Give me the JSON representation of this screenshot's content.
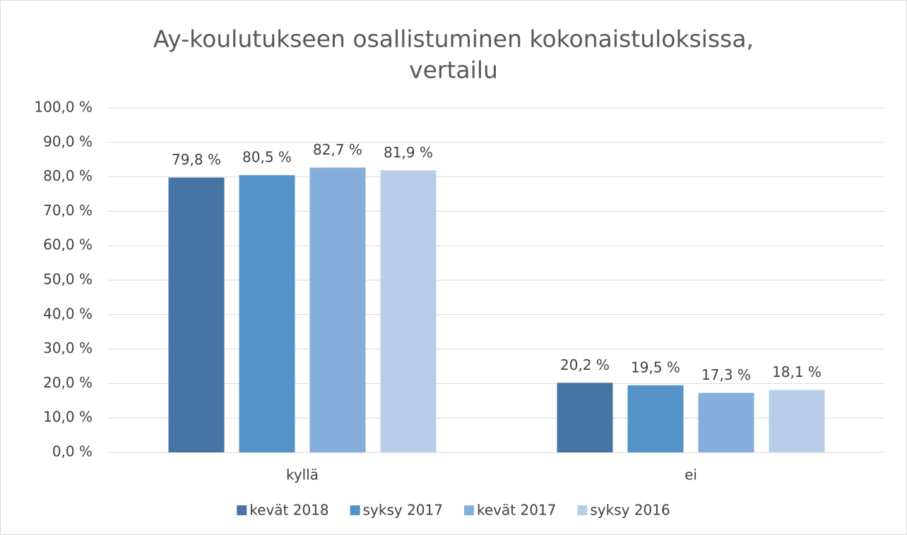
{
  "chart_data": {
    "type": "bar",
    "title": [
      "Ay-koulutukseen osallistuminen kokonaistuloksissa,",
      "vertailu"
    ],
    "categories": [
      "kyllä",
      "ei"
    ],
    "series": [
      {
        "name": "kevät 2018",
        "color": "#4674a5",
        "values": [
          79.8,
          20.2
        ],
        "value_labels": [
          "79,8 %",
          "20,2 %"
        ]
      },
      {
        "name": "syksy 2017",
        "color": "#5592c8",
        "values": [
          80.5,
          19.5
        ],
        "value_labels": [
          "80,5 %",
          "19,5 %"
        ]
      },
      {
        "name": "kevät 2017",
        "color": "#86aedb",
        "values": [
          82.7,
          17.3
        ],
        "value_labels": [
          "82,7 %",
          "17,3 %"
        ]
      },
      {
        "name": "syksy 2016",
        "color": "#b9cde8",
        "values": [
          81.9,
          18.1
        ],
        "value_labels": [
          "81,9 %",
          "18,1 %"
        ]
      }
    ],
    "ylim": [
      0,
      100
    ],
    "yticks": [
      {
        "value": 0,
        "label": "0,0 %"
      },
      {
        "value": 10,
        "label": "10,0 %"
      },
      {
        "value": 20,
        "label": "20,0 %"
      },
      {
        "value": 30,
        "label": "30,0 %"
      },
      {
        "value": 40,
        "label": "40,0 %"
      },
      {
        "value": 50,
        "label": "50,0 %"
      },
      {
        "value": 60,
        "label": "60,0 %"
      },
      {
        "value": 70,
        "label": "70,0 %"
      },
      {
        "value": 80,
        "label": "80,0 %"
      },
      {
        "value": 90,
        "label": "90,0 %"
      },
      {
        "value": 100,
        "label": "100,0 %"
      }
    ],
    "grid": true,
    "legend": "bottom"
  }
}
